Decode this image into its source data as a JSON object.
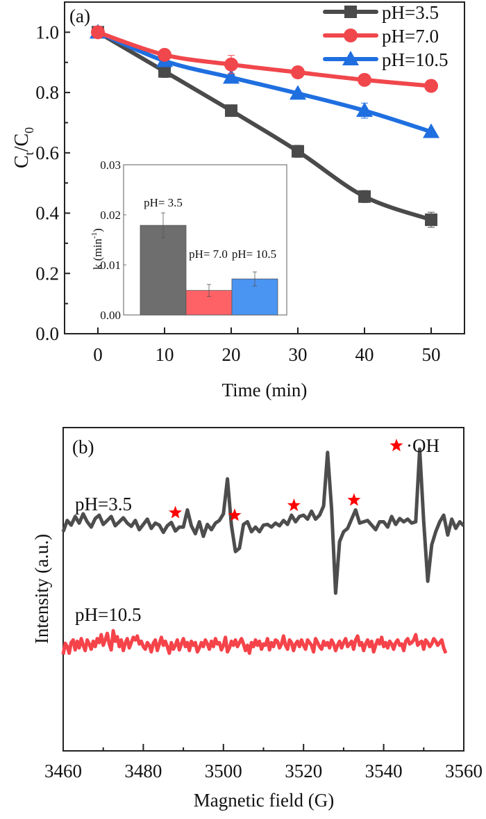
{
  "chart_data": [
    {
      "panel_label": "(a)",
      "type": "line",
      "title": "",
      "xlabel": "Time (min)",
      "ylabel": "C_t/C_0",
      "ylabel_main": "C",
      "ylabel_sub1": "t",
      "ylabel_mid": "/C",
      "ylabel_sub2": "0",
      "xlim": [
        -5,
        55
      ],
      "ylim": [
        0,
        1.1
      ],
      "x_ticks": [
        0,
        10,
        20,
        30,
        40,
        50
      ],
      "y_ticks": [
        0.0,
        0.2,
        0.4,
        0.6,
        0.8,
        1.0
      ],
      "y_tick_labels": [
        "0.0",
        "0.2",
        "0.4",
        "0.6",
        "0.8",
        "1.0"
      ],
      "grid": false,
      "legend_position": "top-right",
      "x": [
        0,
        10,
        20,
        30,
        40,
        50
      ],
      "series": [
        {
          "name": "pH=3.5",
          "color": "#4a4a4a",
          "marker": "square",
          "values": [
            1.0,
            0.87,
            0.74,
            0.605,
            0.455,
            0.378
          ],
          "errors": [
            0.005,
            0.02,
            0.01,
            0.02,
            0.02,
            0.025
          ]
        },
        {
          "name": "pH=7.0",
          "color": "#f0474c",
          "marker": "circle",
          "values": [
            1.0,
            0.925,
            0.893,
            0.867,
            0.842,
            0.822
          ],
          "errors": [
            0.005,
            0.015,
            0.03,
            0.005,
            0.005,
            0.005
          ]
        },
        {
          "name": "pH=10.5",
          "color": "#1f6fe0",
          "marker": "triangle",
          "values": [
            1.0,
            0.905,
            0.85,
            0.797,
            0.74,
            0.67
          ],
          "errors": [
            0.005,
            0.01,
            0.01,
            0.005,
            0.025,
            0.005
          ]
        }
      ],
      "inset": {
        "type": "bar",
        "ylabel": "k (min",
        "ylabel_sup": "-1",
        "ylabel_close": ")",
        "ylim": [
          0,
          0.03
        ],
        "y_ticks": [
          0.0,
          0.01,
          0.02,
          0.03
        ],
        "y_tick_labels": [
          "0.00",
          "0.01",
          "0.02",
          "0.03"
        ],
        "categories": [
          "pH= 3.5",
          "pH= 7.0",
          "pH= 10.5"
        ],
        "values": [
          0.0179,
          0.0049,
          0.0072
        ],
        "errors": [
          0.0025,
          0.0012,
          0.0014
        ],
        "colors": [
          "#6e6e6e",
          "#ff6266",
          "#4a94f2"
        ]
      }
    },
    {
      "panel_label": "(b)",
      "type": "line",
      "title": "",
      "xlabel": "Magnetic field (G)",
      "ylabel": "Intensity (a.u.)",
      "xlim": [
        3460,
        3560
      ],
      "x_ticks": [
        3460,
        3480,
        3500,
        3520,
        3540,
        3560
      ],
      "x_tick_labels": [
        "3460",
        "3480",
        "3500",
        "3520",
        "3540",
        "3560"
      ],
      "y_ticks": [],
      "grid": false,
      "legend": {
        "marker": "star",
        "color": "#ff0000",
        "label": "·OH",
        "position": "top-right"
      },
      "peak_markers_x": [
        3488,
        3502.8,
        3517.6,
        3532.6
      ],
      "series": [
        {
          "name": "pH=3.5",
          "color": "#4d4d4d",
          "offset": 1.0,
          "x_start": 3460,
          "x_step": 1,
          "values": [
            -0.05,
            0.12,
            0.05,
            0.18,
            0.08,
            0.22,
            0.1,
            0.02,
            0.15,
            0.2,
            0.06,
            0.12,
            0.18,
            0.04,
            0.1,
            0.16,
            0.08,
            0.03,
            0.12,
            -0.02,
            0.06,
            0.14,
            0.0,
            0.08,
            0.05,
            -0.06,
            0.04,
            0.09,
            -0.04,
            0.02,
            0.02,
            0.28,
            0.04,
            -0.08,
            0.1,
            -0.12,
            0.06,
            -0.02,
            0.08,
            0.12,
            0.22,
            0.75,
            0.05,
            -0.35,
            -0.3,
            0.06,
            0.1,
            -0.05,
            0.02,
            -0.05,
            0.05,
            0.06,
            0.02,
            0.08,
            0.04,
            0.12,
            0.06,
            0.2,
            0.1,
            0.18,
            0.2,
            0.14,
            0.26,
            0.14,
            0.2,
            0.34,
            1.15,
            0.3,
            -0.98,
            -0.2,
            -0.05,
            0.0,
            0.14,
            0.28,
            0.08,
            0.1,
            0.12,
            0.05,
            -0.02,
            0.1,
            0.1,
            0.02,
            0.18,
            0.06,
            0.15,
            0.1,
            0.14,
            0.08,
            0.1,
            1.2,
            0.1,
            -0.8,
            -0.25,
            -0.05,
            0.1,
            0.2,
            -0.1,
            0.14,
            0.0,
            0.1,
            0.04
          ]
        },
        {
          "name": "pH=10.5",
          "color": "#f5434a",
          "offset": 0.0,
          "x_start": 3460,
          "x_step": 0.5,
          "values": [
            -0.12,
            0.05,
            0.0,
            -0.1,
            0.06,
            0.1,
            -0.05,
            0.08,
            -0.02,
            0.12,
            0.02,
            -0.06,
            0.1,
            0.04,
            -0.04,
            0.08,
            0.0,
            0.12,
            0.06,
            0.18,
            0.02,
            0.1,
            0.2,
            0.04,
            -0.05,
            0.24,
            0.08,
            0.15,
            0.0,
            0.1,
            -0.06,
            0.05,
            0.12,
            -0.02,
            0.06,
            0.14,
            0.1,
            0.16,
            0.04,
            0.08,
            0.0,
            -0.04,
            0.06,
            0.02,
            -0.08,
            0.05,
            0.1,
            -0.06,
            0.04,
            0.14,
            0.02,
            0.08,
            0.0,
            -0.1,
            0.06,
            -0.04,
            0.02,
            0.1,
            -0.05,
            0.04,
            0.12,
            0.0,
            0.06,
            -0.06,
            0.08,
            0.02,
            0.06,
            -0.08,
            -0.02,
            0.06,
            0.0,
            0.1,
            0.04,
            -0.04,
            0.08,
            0.0,
            0.12,
            0.04,
            0.06,
            -0.05,
            0.02,
            0.14,
            -0.08,
            -0.02,
            0.08,
            0.02,
            0.1,
            0.0,
            0.06,
            0.12,
            0.04,
            -0.06,
            0.02,
            -0.1,
            0.06,
            0.0,
            0.1,
            0.02,
            0.08,
            -0.04,
            0.04,
            0.02,
            0.12,
            -0.05,
            0.06,
            0.0,
            0.1,
            0.08,
            -0.02,
            0.04,
            0.16,
            0.02,
            -0.04,
            0.1,
            0.06,
            -0.06,
            0.04,
            0.08,
            0.0,
            0.1,
            0.02,
            -0.04,
            0.1,
            0.06,
            0.02,
            -0.08,
            0.12,
            0.06,
            0.0,
            -0.04,
            0.08,
            0.02,
            0.06,
            -0.02,
            0.1,
            0.04,
            -0.06,
            0.02,
            0.08,
            -0.02,
            0.06,
            0.12,
            0.0,
            0.04,
            0.08,
            -0.04,
            0.1,
            0.16,
            0.02,
            0.06,
            -0.06,
            0.04,
            0.1,
            0.0,
            0.08,
            -0.08,
            0.02,
            0.1,
            0.04,
            0.14,
            0.0,
            0.06,
            -0.02,
            0.08,
            0.04,
            -0.04,
            0.06,
            0.1,
            0.02,
            0.04,
            -0.06,
            0.08,
            0.12,
            0.04,
            0.06,
            0.1,
            0.18,
            0.02,
            0.06,
            0.08,
            -0.04,
            0.1,
            0.06,
            0.0,
            0.04,
            0.12,
            0.08,
            0.02,
            0.06,
            0.1,
            -0.02,
            -0.1
          ]
        }
      ]
    }
  ]
}
